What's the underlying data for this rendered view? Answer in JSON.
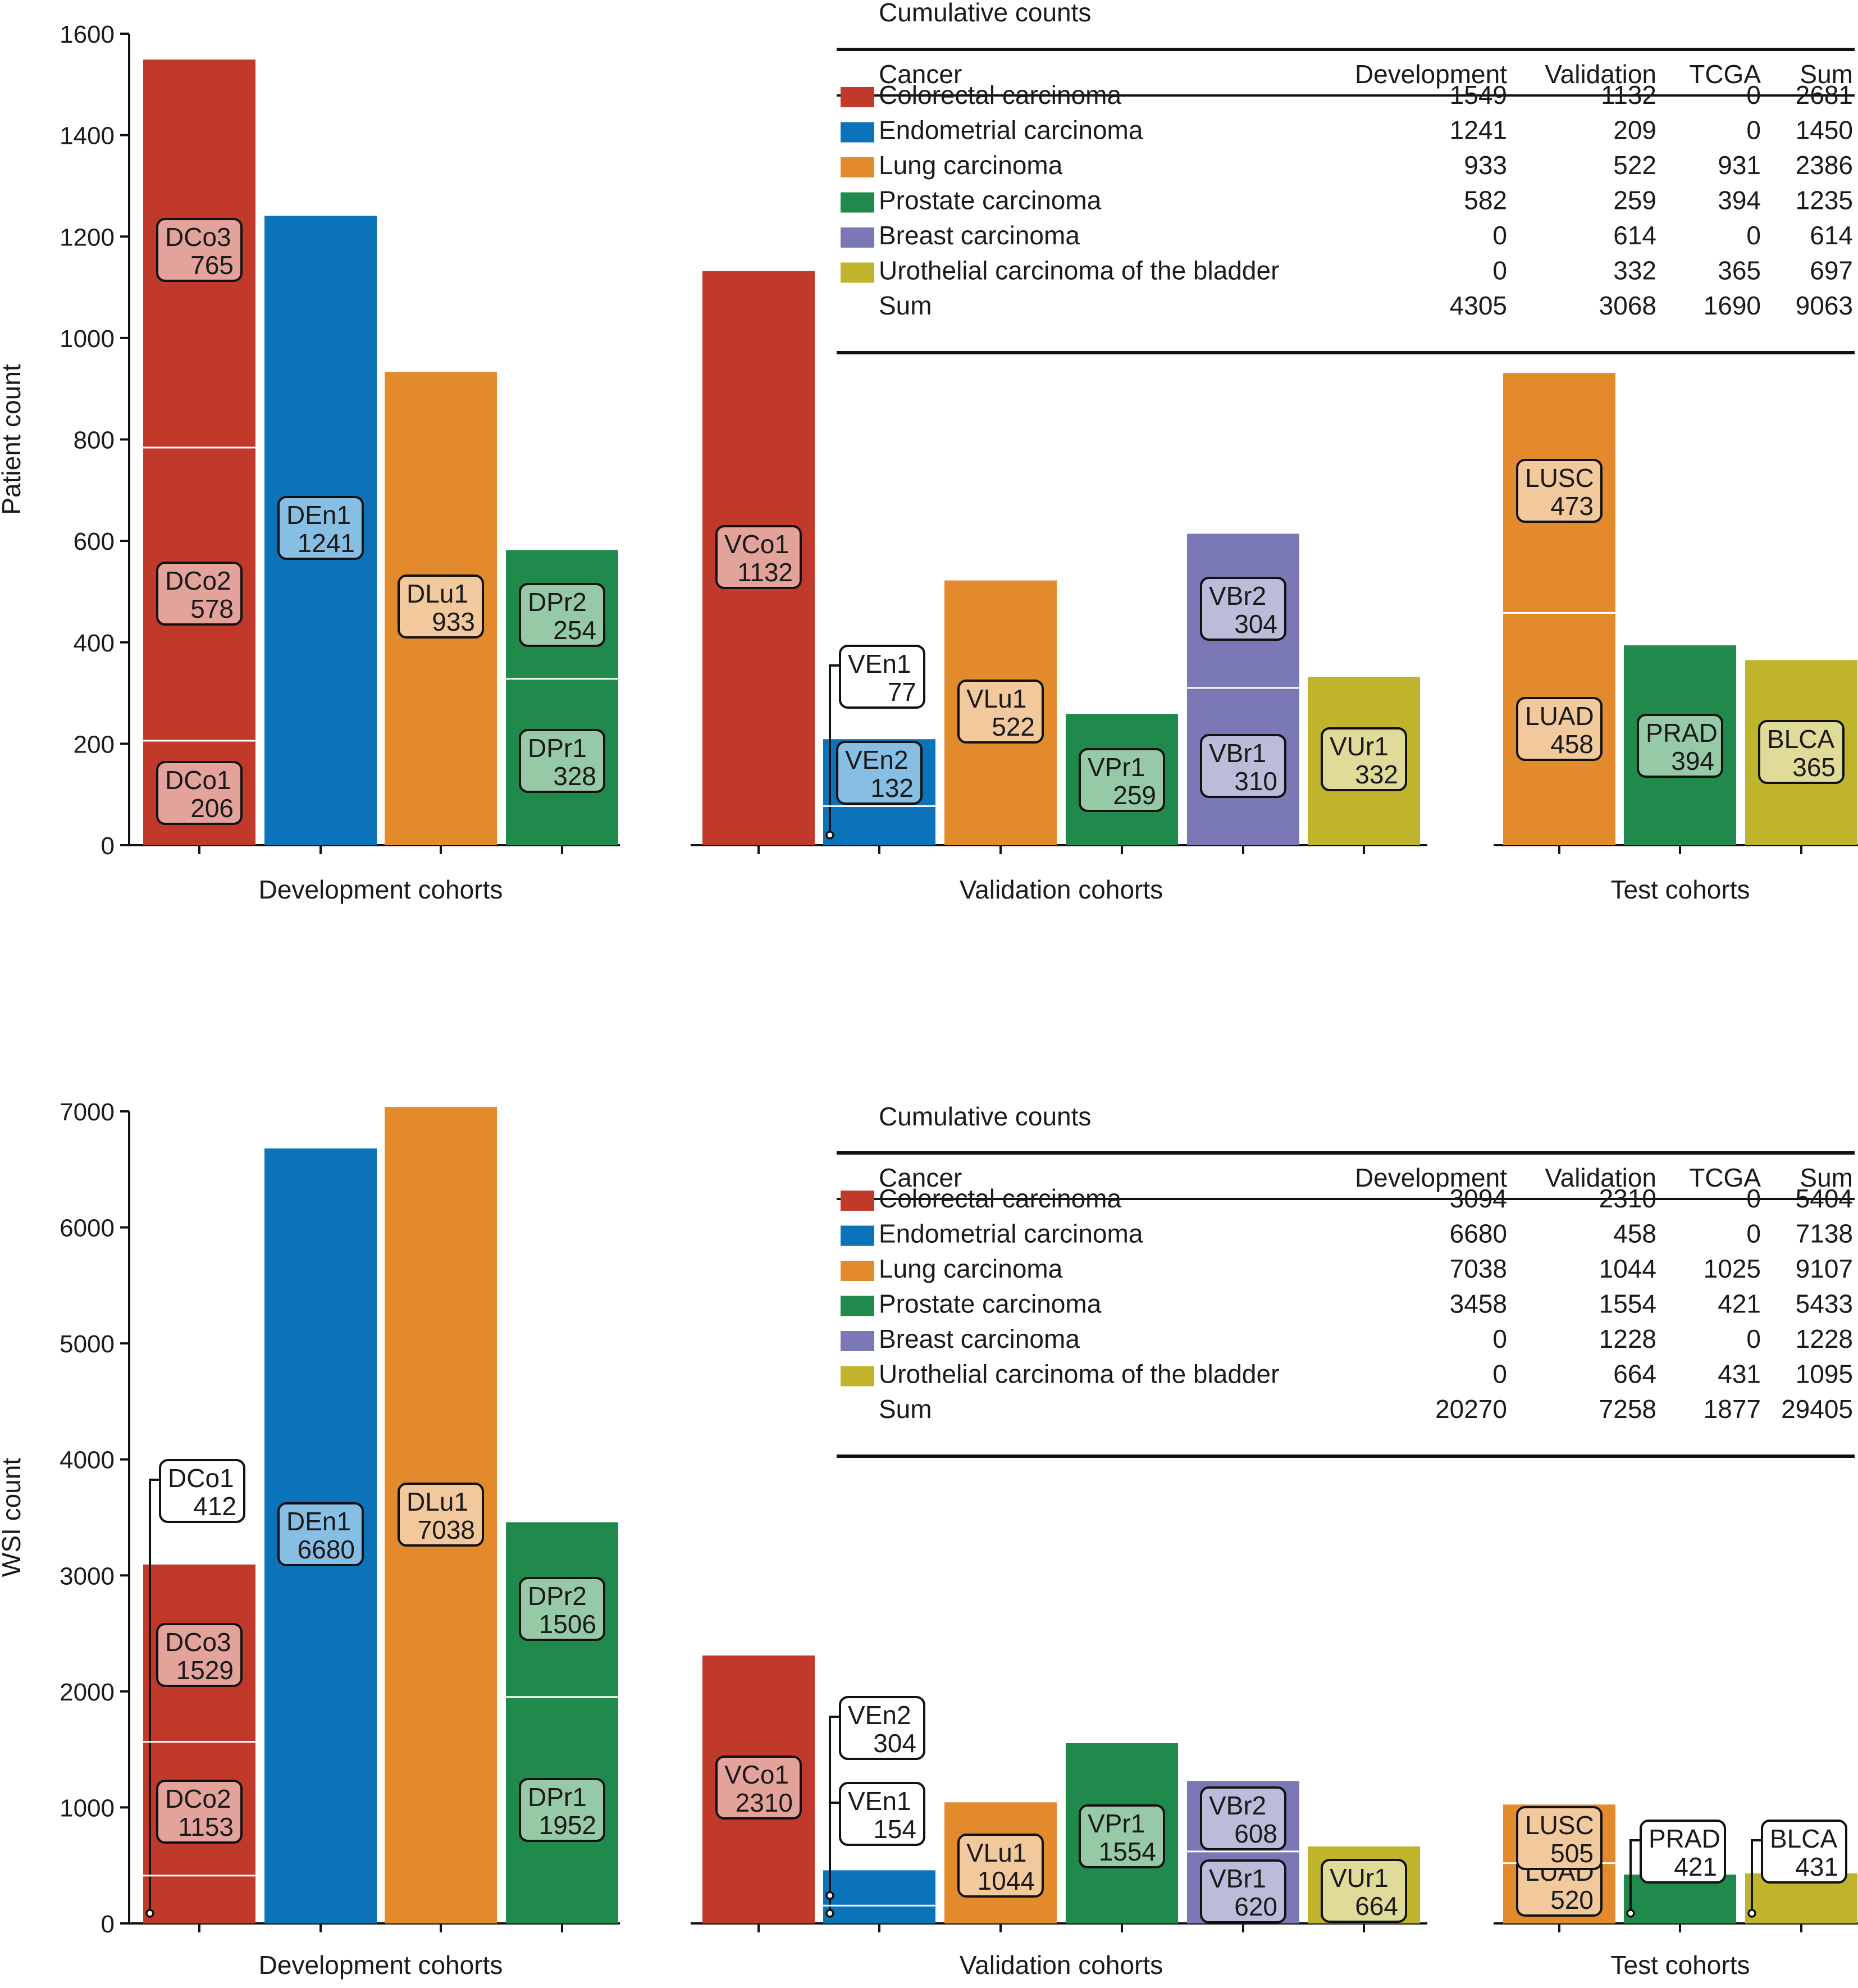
{
  "chart_data": [
    {
      "type": "bar",
      "ylabel": "Patient count",
      "ylim": [
        0,
        1600
      ],
      "yticks": [
        0,
        200,
        400,
        600,
        800,
        1000,
        1200,
        1400,
        1600
      ],
      "groups": [
        {
          "label": "Development cohorts",
          "bars": [
            {
              "cancer": "Colorectal carcinoma",
              "segments": [
                {
                  "label": "DCo1",
                  "value": 206
                },
                {
                  "label": "DCo2",
                  "value": 578
                },
                {
                  "label": "DCo3",
                  "value": 765
                }
              ]
            },
            {
              "cancer": "Endometrial carcinoma",
              "segments": [
                {
                  "label": "DEn1",
                  "value": 1241
                }
              ]
            },
            {
              "cancer": "Lung carcinoma",
              "segments": [
                {
                  "label": "DLu1",
                  "value": 933
                }
              ]
            },
            {
              "cancer": "Prostate carcinoma",
              "segments": [
                {
                  "label": "DPr1",
                  "value": 328
                },
                {
                  "label": "DPr2",
                  "value": 254
                }
              ]
            }
          ]
        },
        {
          "label": "Validation cohorts",
          "bars": [
            {
              "cancer": "Colorectal carcinoma",
              "segments": [
                {
                  "label": "VCo1",
                  "value": 1132
                }
              ]
            },
            {
              "cancer": "Endometrial carcinoma",
              "segments": [
                {
                  "label": "VEn1",
                  "value": 77
                },
                {
                  "label": "VEn2",
                  "value": 132
                }
              ]
            },
            {
              "cancer": "Lung carcinoma",
              "segments": [
                {
                  "label": "VLu1",
                  "value": 522
                }
              ]
            },
            {
              "cancer": "Prostate carcinoma",
              "segments": [
                {
                  "label": "VPr1",
                  "value": 259
                }
              ]
            },
            {
              "cancer": "Breast carcinoma",
              "segments": [
                {
                  "label": "VBr1",
                  "value": 310
                },
                {
                  "label": "VBr2",
                  "value": 304
                }
              ]
            },
            {
              "cancer": "Urothelial carcinoma of the bladder",
              "segments": [
                {
                  "label": "VUr1",
                  "value": 332
                }
              ]
            }
          ]
        },
        {
          "label": "Test cohorts",
          "bars": [
            {
              "cancer": "Lung carcinoma",
              "segments": [
                {
                  "label": "LUAD",
                  "value": 458
                },
                {
                  "label": "LUSC",
                  "value": 473
                }
              ]
            },
            {
              "cancer": "Prostate carcinoma",
              "segments": [
                {
                  "label": "PRAD",
                  "value": 394
                }
              ]
            },
            {
              "cancer": "Urothelial carcinoma of the bladder",
              "segments": [
                {
                  "label": "BLCA",
                  "value": 365
                }
              ]
            }
          ]
        }
      ],
      "table": {
        "title": "Cumulative counts",
        "columns": [
          "Cancer",
          "Development",
          "Validation",
          "TCGA",
          "Sum"
        ],
        "rows": [
          {
            "cancer": "Colorectal carcinoma",
            "values": [
              "1549",
              "1132",
              "0",
              "2681"
            ]
          },
          {
            "cancer": "Endometrial carcinoma",
            "values": [
              "1241",
              "209",
              "0",
              "1450"
            ]
          },
          {
            "cancer": "Lung carcinoma",
            "values": [
              "933",
              "522",
              "931",
              "2386"
            ]
          },
          {
            "cancer": "Prostate carcinoma",
            "values": [
              "582",
              "259",
              "394",
              "1235"
            ]
          },
          {
            "cancer": "Breast carcinoma",
            "values": [
              "0",
              "614",
              "0",
              "614"
            ]
          },
          {
            "cancer": "Urothelial carcinoma of the bladder",
            "values": [
              "0",
              "332",
              "365",
              "697"
            ]
          }
        ],
        "sum_row": {
          "label": "Sum",
          "values": [
            "4305",
            "3068",
            "1690",
            "9063"
          ]
        }
      }
    },
    {
      "type": "bar",
      "ylabel": "WSI count",
      "ylim": [
        0,
        7000
      ],
      "yticks": [
        0,
        1000,
        2000,
        3000,
        4000,
        5000,
        6000,
        7000
      ],
      "groups": [
        {
          "label": "Development cohorts",
          "bars": [
            {
              "cancer": "Colorectal carcinoma",
              "segments": [
                {
                  "label": "DCo1",
                  "value": 412
                },
                {
                  "label": "DCo2",
                  "value": 1153
                },
                {
                  "label": "DCo3",
                  "value": 1529
                }
              ]
            },
            {
              "cancer": "Endometrial carcinoma",
              "segments": [
                {
                  "label": "DEn1",
                  "value": 6680
                }
              ]
            },
            {
              "cancer": "Lung carcinoma",
              "segments": [
                {
                  "label": "DLu1",
                  "value": 7038
                }
              ]
            },
            {
              "cancer": "Prostate carcinoma",
              "segments": [
                {
                  "label": "DPr1",
                  "value": 1952
                },
                {
                  "label": "DPr2",
                  "value": 1506
                }
              ]
            }
          ]
        },
        {
          "label": "Validation cohorts",
          "bars": [
            {
              "cancer": "Colorectal carcinoma",
              "segments": [
                {
                  "label": "VCo1",
                  "value": 2310
                }
              ]
            },
            {
              "cancer": "Endometrial carcinoma",
              "segments": [
                {
                  "label": "VEn1",
                  "value": 154
                },
                {
                  "label": "VEn2",
                  "value": 304
                }
              ]
            },
            {
              "cancer": "Lung carcinoma",
              "segments": [
                {
                  "label": "VLu1",
                  "value": 1044
                }
              ]
            },
            {
              "cancer": "Prostate carcinoma",
              "segments": [
                {
                  "label": "VPr1",
                  "value": 1554
                }
              ]
            },
            {
              "cancer": "Breast carcinoma",
              "segments": [
                {
                  "label": "VBr1",
                  "value": 620
                },
                {
                  "label": "VBr2",
                  "value": 608
                }
              ]
            },
            {
              "cancer": "Urothelial carcinoma of the bladder",
              "segments": [
                {
                  "label": "VUr1",
                  "value": 664
                }
              ]
            }
          ]
        },
        {
          "label": "Test cohorts",
          "bars": [
            {
              "cancer": "Lung carcinoma",
              "segments": [
                {
                  "label": "LUAD",
                  "value": 520
                },
                {
                  "label": "LUSC",
                  "value": 505
                }
              ]
            },
            {
              "cancer": "Prostate carcinoma",
              "segments": [
                {
                  "label": "PRAD",
                  "value": 421
                }
              ]
            },
            {
              "cancer": "Urothelial carcinoma of the bladder",
              "segments": [
                {
                  "label": "BLCA",
                  "value": 431
                }
              ]
            }
          ]
        }
      ],
      "table": {
        "title": "Cumulative counts",
        "columns": [
          "Cancer",
          "Development",
          "Validation",
          "TCGA",
          "Sum"
        ],
        "rows": [
          {
            "cancer": "Colorectal carcinoma",
            "values": [
              "3094",
              "2310",
              "0",
              "5404"
            ]
          },
          {
            "cancer": "Endometrial carcinoma",
            "values": [
              "6680",
              "458",
              "0",
              "7138"
            ]
          },
          {
            "cancer": "Lung carcinoma",
            "values": [
              "7038",
              "1044",
              "1025",
              "9107"
            ]
          },
          {
            "cancer": "Prostate carcinoma",
            "values": [
              "3458",
              "1554",
              "421",
              "5433"
            ]
          },
          {
            "cancer": "Breast carcinoma",
            "values": [
              "0",
              "1228",
              "0",
              "1228"
            ]
          },
          {
            "cancer": "Urothelial carcinoma of the bladder",
            "values": [
              "0",
              "664",
              "431",
              "1095"
            ]
          }
        ],
        "sum_row": {
          "label": "Sum",
          "values": [
            "20270",
            "7258",
            "1877",
            "29405"
          ]
        }
      }
    }
  ],
  "colors": {
    "Colorectal carcinoma": {
      "bar": "#c0392b",
      "box": "#e3a39b"
    },
    "Endometrial carcinoma": {
      "bar": "#0a73ba",
      "box": "#87bee3"
    },
    "Lung carcinoma": {
      "bar": "#e38b2c",
      "box": "#f2c99d"
    },
    "Prostate carcinoma": {
      "bar": "#1f8a4c",
      "box": "#96c9a6"
    },
    "Breast carcinoma": {
      "bar": "#7a79b5",
      "box": "#bcbbda"
    },
    "Urothelial carcinoma of the bladder": {
      "bar": "#bfb42c",
      "box": "#e0db98"
    }
  }
}
